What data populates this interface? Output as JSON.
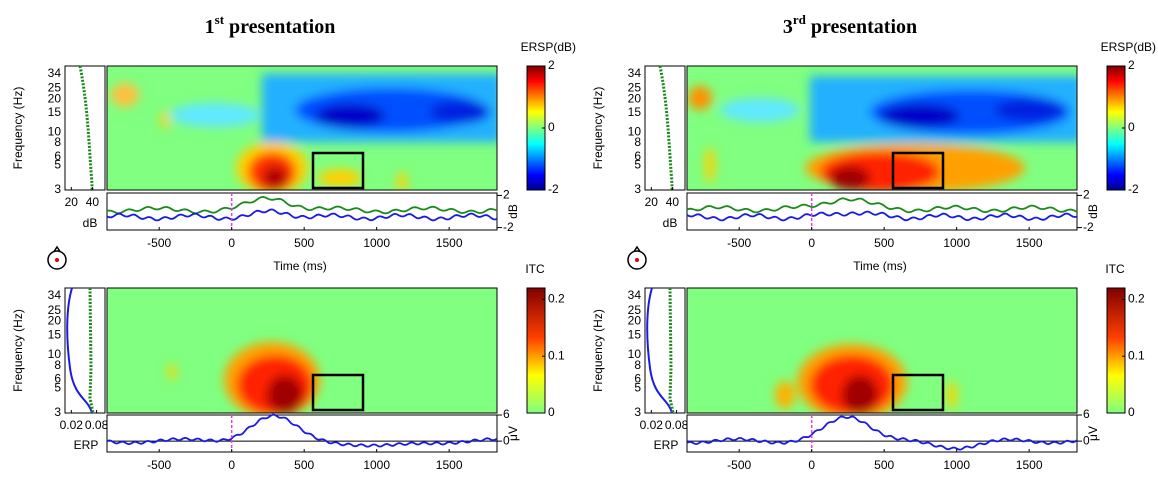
{
  "panels": [
    {
      "title": {
        "number": "1",
        "suffix": "st",
        "rest": "presentation"
      },
      "ersp": {
        "colorbar_label": "ERSP(dB)",
        "colorbar_ticks": [
          -2,
          0,
          2
        ],
        "colorbar_lim": [
          -2,
          2
        ],
        "ylabel": "Frequency (Hz)",
        "yticks": [
          3,
          5,
          6,
          8,
          10,
          15,
          20,
          25,
          34
        ],
        "ylim": [
          3,
          40
        ],
        "log_y": true,
        "marginal_ticks": [
          20,
          40
        ],
        "marginal_lim": [
          14,
          52
        ],
        "marginal_label": "dB",
        "trace_ticks": [
          -2,
          2
        ],
        "trace_lim": [
          -2.3,
          2.3
        ],
        "trace_label": "dB",
        "xlabel": "Time (ms)",
        "xticks": [
          -500,
          0,
          500,
          1000,
          1500
        ],
        "xlim": [
          -860,
          1830
        ]
      },
      "itc": {
        "colorbar_label": "ITC",
        "colorbar_ticks": [
          0,
          0.1,
          0.2
        ],
        "colorbar_lim": [
          0,
          0.22
        ],
        "ylabel": "Frequency (Hz)",
        "yticks": [
          3,
          5,
          6,
          8,
          10,
          15,
          20,
          25,
          34
        ],
        "ylim": [
          3,
          40
        ],
        "log_y": true,
        "marginal_ticks": [
          0.02,
          0.08
        ],
        "marginal_lim": [
          0.005,
          0.1
        ],
        "marginal_label": "ERP",
        "trace_ticks": [
          0,
          6
        ],
        "trace_lim": [
          -2.5,
          6
        ],
        "trace_label": "μV",
        "xticks": [
          -500,
          0,
          500,
          1000,
          1500
        ],
        "xlim": [
          -860,
          1830
        ]
      }
    },
    {
      "title": {
        "number": "3",
        "suffix": "rd",
        "rest": "presentation"
      },
      "ersp": {
        "colorbar_label": "ERSP(dB)",
        "colorbar_ticks": [
          -2,
          0,
          2
        ],
        "colorbar_lim": [
          -2,
          2
        ],
        "ylabel": "Frequency (Hz)",
        "yticks": [
          3,
          5,
          6,
          8,
          10,
          15,
          20,
          25,
          34
        ],
        "ylim": [
          3,
          40
        ],
        "log_y": true,
        "marginal_ticks": [
          20,
          40
        ],
        "marginal_lim": [
          14,
          52
        ],
        "marginal_label": "dB",
        "trace_ticks": [
          -2,
          2
        ],
        "trace_lim": [
          -2.3,
          2.3
        ],
        "trace_label": "dB",
        "xlabel": "Time (ms)",
        "xticks": [
          -500,
          0,
          500,
          1000,
          1500
        ],
        "xlim": [
          -860,
          1830
        ]
      },
      "itc": {
        "colorbar_label": "ITC",
        "colorbar_ticks": [
          0,
          0.1,
          0.2
        ],
        "colorbar_lim": [
          0,
          0.22
        ],
        "ylabel": "Frequency (Hz)",
        "yticks": [
          3,
          5,
          6,
          8,
          10,
          15,
          20,
          25,
          34
        ],
        "ylim": [
          3,
          40
        ],
        "log_y": true,
        "marginal_ticks": [
          0.02,
          0.08
        ],
        "marginal_lim": [
          0.005,
          0.1
        ],
        "marginal_label": "ERP",
        "trace_ticks": [
          0,
          6
        ],
        "trace_lim": [
          -2.5,
          6
        ],
        "trace_label": "μV",
        "xticks": [
          -500,
          0,
          500,
          1000,
          1500
        ],
        "xlim": [
          -860,
          1830
        ]
      }
    }
  ]
}
